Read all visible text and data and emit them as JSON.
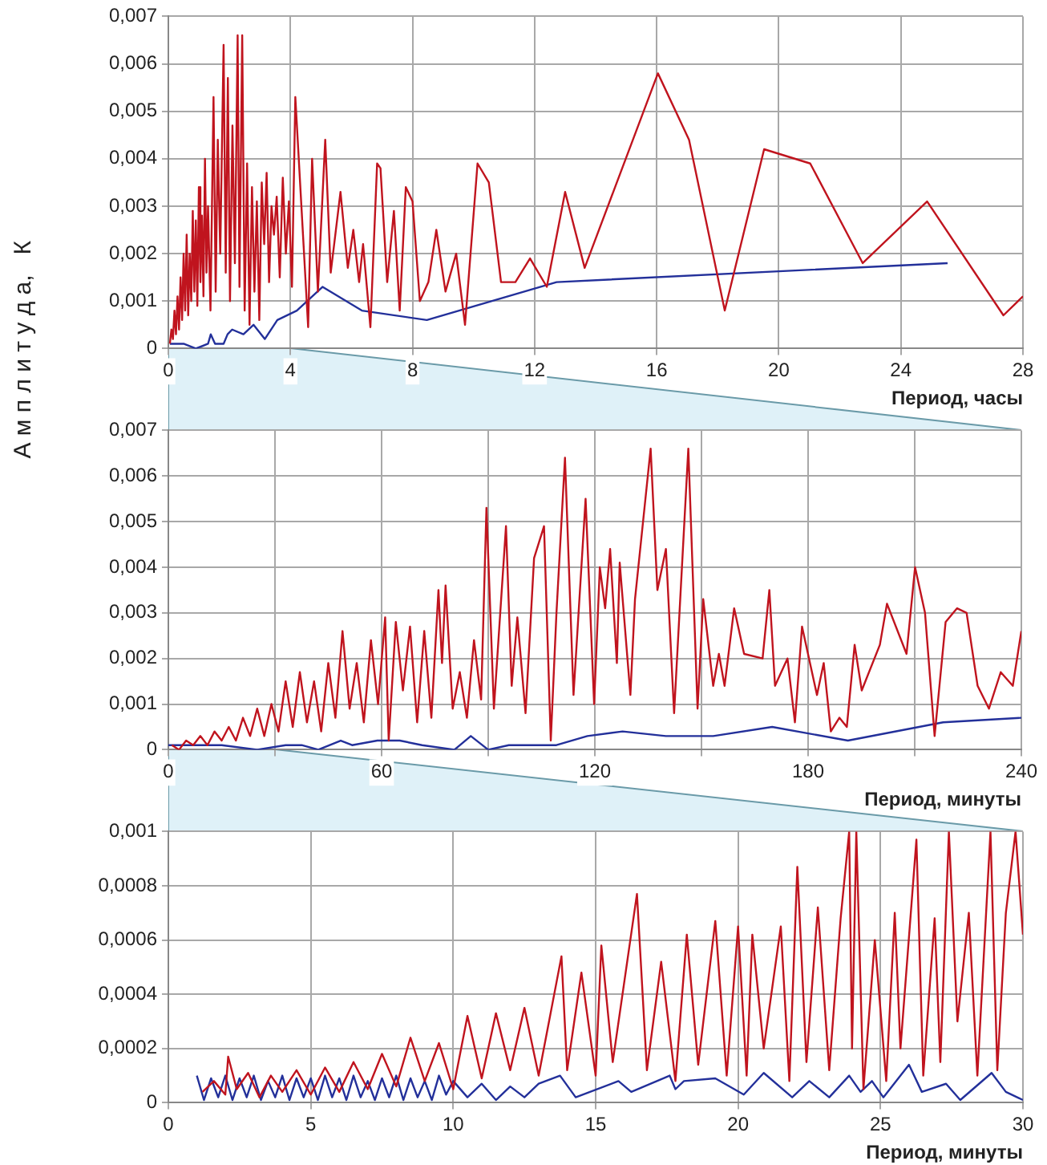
{
  "chart_data": [
    {
      "type": "line",
      "xlabel": "Период, часы",
      "ylabel": "А м п л и т у д а,   К",
      "grid": true,
      "xlim": [
        0,
        28
      ],
      "xticks": [
        0,
        4,
        8,
        12,
        16,
        20,
        24,
        28
      ],
      "ylim": [
        0,
        0.007
      ],
      "yticks": [
        {
          "value": 0,
          "label": "0"
        },
        {
          "value": 0.001,
          "label": "0,001"
        },
        {
          "value": 0.002,
          "label": "0,002"
        },
        {
          "value": 0.003,
          "label": "0,003"
        },
        {
          "value": 0.004,
          "label": "0,004"
        },
        {
          "value": 0.005,
          "label": "0,005"
        },
        {
          "value": 0.006,
          "label": "0,006"
        },
        {
          "value": 0.007,
          "label": "0,007"
        }
      ],
      "series": [
        {
          "color": "#c0141e",
          "x": [
            0.05,
            0.1,
            0.15,
            0.2,
            0.25,
            0.3,
            0.35,
            0.4,
            0.45,
            0.5,
            0.55,
            0.6,
            0.65,
            0.7,
            0.75,
            0.8,
            0.85,
            0.9,
            0.95,
            1.0,
            1.05,
            1.1,
            1.15,
            1.2,
            1.25,
            1.3,
            1.38,
            1.48,
            1.55,
            1.62,
            1.7,
            1.81,
            1.88,
            1.95,
            2.02,
            2.1,
            2.18,
            2.27,
            2.33,
            2.42,
            2.5,
            2.58,
            2.66,
            2.74,
            2.82,
            2.9,
            2.98,
            3.06,
            3.14,
            3.22,
            3.3,
            3.38,
            3.46,
            3.55,
            3.65,
            3.75,
            3.85,
            3.95,
            4.05,
            4.16,
            4.58,
            4.71,
            4.9,
            5.14,
            5.32,
            5.64,
            5.88,
            6.06,
            6.25,
            6.38,
            6.62,
            6.84,
            6.95,
            7.17,
            7.39,
            7.58,
            7.78,
            8.0,
            8.24,
            8.52,
            8.78,
            9.08,
            9.43,
            9.72,
            10.13,
            10.5,
            10.9,
            11.37,
            11.85,
            12.4,
            13.0,
            13.64,
            16.04,
            17.06,
            18.23,
            19.52,
            21.03,
            22.75,
            24.86,
            27.36,
            28
          ],
          "values": [
            0.0001,
            0.0004,
            0.0002,
            0.0008,
            0.0003,
            0.0011,
            0.0004,
            0.0015,
            0.0006,
            0.002,
            0.0008,
            0.0024,
            0.0007,
            0.002,
            0.001,
            0.0029,
            0.0012,
            0.0027,
            0.0009,
            0.0034,
            0.0014,
            0.0028,
            0.0011,
            0.004,
            0.0016,
            0.003,
            0.0008,
            0.0053,
            0.0012,
            0.0044,
            0.002,
            0.0064,
            0.0016,
            0.0057,
            0.001,
            0.0047,
            0.0018,
            0.0066,
            0.0013,
            0.0066,
            0.0008,
            0.0039,
            0.0005,
            0.0034,
            0.0012,
            0.0031,
            0.0006,
            0.0035,
            0.0022,
            0.0037,
            0.0014,
            0.003,
            0.0024,
            0.0032,
            0.0015,
            0.0036,
            0.002,
            0.0031,
            0.0013,
            0.0053,
            0.00045,
            0.004,
            0.0012,
            0.0044,
            0.0016,
            0.0033,
            0.0017,
            0.0025,
            0.0014,
            0.0022,
            0.00045,
            0.0039,
            0.0038,
            0.0014,
            0.0029,
            0.0008,
            0.0034,
            0.0031,
            0.001,
            0.0014,
            0.0025,
            0.0012,
            0.002,
            0.0005,
            0.0039,
            0.0035,
            0.0014,
            0.0014,
            0.0019,
            0.0013,
            0.0033,
            0.0017,
            0.0058,
            0.0044,
            0.0008,
            0.0042,
            0.0039,
            0.0018,
            0.0031,
            0.0007,
            0.0011
          ]
        },
        {
          "color": "#23309a",
          "x": [
            0.05,
            0.5,
            0.9,
            1.3,
            1.39,
            1.53,
            1.81,
            1.94,
            2.09,
            2.46,
            2.79,
            3.16,
            3.57,
            4.21,
            5.05,
            6.34,
            8.47,
            12.72,
            25.53
          ],
          "values": [
            0.0001,
            0.0001,
            0.0,
            0.0001,
            0.0003,
            0.0001,
            0.0001,
            0.0003,
            0.0004,
            0.0003,
            0.0005,
            0.0002,
            0.0006,
            0.0008,
            0.0013,
            0.0008,
            0.0006,
            0.0014,
            0.0018
          ]
        }
      ]
    },
    {
      "type": "line",
      "xlabel": "Период, минуты",
      "grid": true,
      "xlim": [
        0,
        240
      ],
      "xticks": [
        0,
        {
          "value": 30,
          "label": null
        },
        60,
        {
          "value": 90,
          "label": null
        },
        120,
        {
          "value": 150,
          "label": null
        },
        180,
        {
          "value": 210,
          "label": null
        },
        240
      ],
      "ylim": [
        0,
        0.007
      ],
      "yticks": [
        {
          "value": 0,
          "label": "0"
        },
        {
          "value": 0.001,
          "label": "0,001"
        },
        {
          "value": 0.002,
          "label": "0,002"
        },
        {
          "value": 0.003,
          "label": "0,003"
        },
        {
          "value": 0.004,
          "label": "0,004"
        },
        {
          "value": 0.005,
          "label": "0,005"
        },
        {
          "value": 0.006,
          "label": "0,006"
        },
        {
          "value": 0.007,
          "label": "0,007"
        }
      ],
      "series": [
        {
          "color": "#c0141e",
          "x": [
            1,
            3,
            5,
            7,
            9,
            11,
            13,
            15,
            17,
            19,
            21,
            23,
            25,
            27,
            29,
            31,
            33,
            35,
            37,
            39,
            41,
            43,
            45,
            47,
            49,
            51,
            53,
            55,
            57,
            59,
            61,
            62,
            64,
            66,
            68,
            70,
            72,
            74,
            76,
            77,
            78,
            80,
            82,
            84,
            86,
            88,
            89.5,
            91.6,
            95,
            96.6,
            98.2,
            100.5,
            102.9,
            105.7,
            107.6,
            109.2,
            111.6,
            114,
            117.4,
            119.8,
            121.4,
            122.9,
            124.3,
            126.2,
            127,
            130,
            131.3,
            135.7,
            137.6,
            140,
            142.3,
            146.3,
            148.9,
            150.5,
            153.3,
            154.9,
            156.5,
            159.2,
            162,
            167.2,
            169.1,
            170.7,
            174.2,
            176.3,
            178.3,
            182.5,
            184.4,
            186.4,
            188.8,
            190.9,
            193.1,
            195.1,
            200.2,
            202.2,
            207.7,
            210.1,
            212.9,
            215.6,
            218.7,
            221.9,
            224.6,
            227.7,
            230.9,
            234.2,
            237.6,
            240
          ],
          "values": [
            0.0001,
            0.0,
            0.0002,
            0.0001,
            0.0003,
            0.0001,
            0.0004,
            0.0002,
            0.0005,
            0.0002,
            0.0007,
            0.0003,
            0.0009,
            0.0003,
            0.001,
            0.0004,
            0.0015,
            0.0005,
            0.0017,
            0.0006,
            0.0015,
            0.0004,
            0.0019,
            0.0007,
            0.0026,
            0.0009,
            0.0019,
            0.0006,
            0.0024,
            0.001,
            0.0029,
            0.0002,
            0.0028,
            0.0013,
            0.0027,
            0.0006,
            0.0026,
            0.0007,
            0.0035,
            0.0019,
            0.0036,
            0.0009,
            0.0017,
            0.0007,
            0.0024,
            0.0011,
            0.0053,
            0.0009,
            0.0049,
            0.0014,
            0.0029,
            0.0008,
            0.0042,
            0.0049,
            0.0002,
            0.003,
            0.0064,
            0.0012,
            0.0055,
            0.001,
            0.004,
            0.0031,
            0.0044,
            0.0019,
            0.0041,
            0.0012,
            0.0033,
            0.0066,
            0.0035,
            0.0044,
            0.0008,
            0.0066,
            0.0009,
            0.0033,
            0.0014,
            0.0021,
            0.0014,
            0.0031,
            0.0021,
            0.002,
            0.0035,
            0.0014,
            0.002,
            0.0006,
            0.0027,
            0.0012,
            0.0019,
            0.0004,
            0.0007,
            0.0005,
            0.0023,
            0.0013,
            0.0023,
            0.0032,
            0.0021,
            0.004,
            0.003,
            0.0003,
            0.0028,
            0.0031,
            0.003,
            0.0014,
            0.0009,
            0.0017,
            0.0014,
            0.0026
          ]
        },
        {
          "color": "#23309a",
          "x": [
            0,
            15,
            25,
            33,
            37.5,
            42.2,
            48.5,
            51.7,
            58.8,
            65.1,
            71.4,
            80.5,
            85.1,
            90,
            95.8,
            109.2,
            117.9,
            127.8,
            140,
            153.3,
            169.9,
            191.2,
            218,
            240
          ],
          "values": [
            0.0001,
            0.0001,
            0.0,
            0.0001,
            0.0001,
            0.0,
            0.0002,
            0.0001,
            0.0002,
            0.0002,
            0.0001,
            0.0,
            0.0003,
            0.0,
            0.0001,
            0.0001,
            0.0003,
            0.0004,
            0.0003,
            0.0003,
            0.0005,
            0.0002,
            0.0006,
            0.0007
          ]
        }
      ]
    },
    {
      "type": "line",
      "xlabel": "Период, минуты",
      "grid": true,
      "xlim": [
        0,
        30
      ],
      "xticks": [
        0,
        5,
        10,
        15,
        20,
        25,
        30
      ],
      "ylim": [
        0,
        0.001
      ],
      "yticks": [
        {
          "value": 0,
          "label": "0"
        },
        {
          "value": 0.0002,
          "label": "0,0002"
        },
        {
          "value": 0.0004,
          "label": "0,0004"
        },
        {
          "value": 0.0006,
          "label": "0,0006"
        },
        {
          "value": 0.0008,
          "label": "0,0008"
        },
        {
          "value": 0.001,
          "label": "0,001"
        }
      ],
      "series": [
        {
          "color": "#c0141e",
          "x": [
            1.2,
            1.6,
            2.0,
            2.1,
            2.4,
            2.8,
            3.2,
            3.6,
            4.0,
            4.5,
            5.0,
            5.5,
            6,
            6.5,
            7,
            7.5,
            8,
            8.5,
            9,
            9.5,
            10,
            10.5,
            11,
            11.5,
            12,
            12.5,
            13,
            13.8,
            14,
            14.5,
            15,
            15.2,
            15.6,
            16.45,
            16.8,
            17.3,
            17.8,
            18.2,
            18.6,
            19.2,
            19.6,
            20,
            20.3,
            20.5,
            20.9,
            21.5,
            21.8,
            22.08,
            22.4,
            22.8,
            23.2,
            23.6,
            23.9,
            24.0,
            24.15,
            24.4,
            24.8,
            25.2,
            25.5,
            25.7,
            26.26,
            26.5,
            26.9,
            27.1,
            27.4,
            27.7,
            28.1,
            28.4,
            28.86,
            29.1,
            29.4,
            29.74,
            30
          ],
          "values": [
            4e-05,
            8e-05,
            3e-05,
            0.00017,
            5e-05,
            0.00011,
            2e-05,
            0.0001,
            4e-05,
            0.00012,
            3e-05,
            0.00013,
            4e-05,
            0.00015,
            5e-05,
            0.00018,
            6e-05,
            0.00024,
            8e-05,
            0.00022,
            5e-05,
            0.00032,
            9e-05,
            0.00033,
            0.00012,
            0.00035,
            0.0001,
            0.00054,
            0.00012,
            0.00048,
            0.0001,
            0.00058,
            0.00015,
            0.00077,
            0.00012,
            0.00052,
            8e-05,
            0.00062,
            0.00014,
            0.00067,
            0.0001,
            0.00065,
            0.0001,
            0.00062,
            0.0002,
            0.00065,
            8e-05,
            0.00087,
            0.00015,
            0.00072,
            0.00012,
            0.00068,
            0.001,
            0.0002,
            0.001,
            5e-05,
            0.0006,
            8e-05,
            0.0007,
            0.0002,
            0.00097,
            0.0001,
            0.00068,
            0.00015,
            0.001,
            0.0003,
            0.0007,
            0.0001,
            0.001,
            0.00012,
            0.0007,
            0.001,
            0.00062
          ]
        },
        {
          "color": "#23309a",
          "x": [
            1,
            1.25,
            1.5,
            1.75,
            2,
            2.25,
            2.5,
            2.75,
            3,
            3.25,
            3.5,
            3.75,
            4,
            4.25,
            4.5,
            4.75,
            5,
            5.25,
            5.5,
            5.75,
            6,
            6.25,
            6.5,
            6.75,
            7,
            7.25,
            7.5,
            7.75,
            8,
            8.25,
            8.5,
            8.75,
            9,
            9.25,
            9.5,
            9.75,
            10,
            10.5,
            11,
            11.5,
            12,
            12.5,
            13,
            13.75,
            14.3,
            15.8,
            16.25,
            17.6,
            17.8,
            18.1,
            19.2,
            20.2,
            20.9,
            21.9,
            22.5,
            23.2,
            23.9,
            24.3,
            24.7,
            25.1,
            26.0,
            26.45,
            27.3,
            27.8,
            28.9,
            29.4,
            30
          ],
          "values": [
            0.0001,
            1e-05,
            9e-05,
            2e-05,
            0.0001,
            1e-05,
            9e-05,
            2e-05,
            0.0001,
            1e-05,
            8e-05,
            2e-05,
            0.0001,
            1e-05,
            9e-05,
            2e-05,
            9e-05,
            1e-05,
            0.0001,
            2e-05,
            9e-05,
            1e-05,
            0.0001,
            2e-05,
            8e-05,
            1e-05,
            9e-05,
            2e-05,
            0.0001,
            1e-05,
            9e-05,
            2e-05,
            8e-05,
            1e-05,
            0.0001,
            3e-05,
            8e-05,
            2e-05,
            7e-05,
            1e-05,
            6e-05,
            2e-05,
            7e-05,
            0.0001,
            2e-05,
            8e-05,
            4e-05,
            0.0001,
            5e-05,
            8e-05,
            9e-05,
            3e-05,
            0.00011,
            2e-05,
            8e-05,
            2e-05,
            0.0001,
            4e-05,
            8e-05,
            2e-05,
            0.00014,
            4e-05,
            7e-05,
            1e-05,
            0.00011,
            4e-05,
            1e-05
          ]
        }
      ]
    }
  ]
}
